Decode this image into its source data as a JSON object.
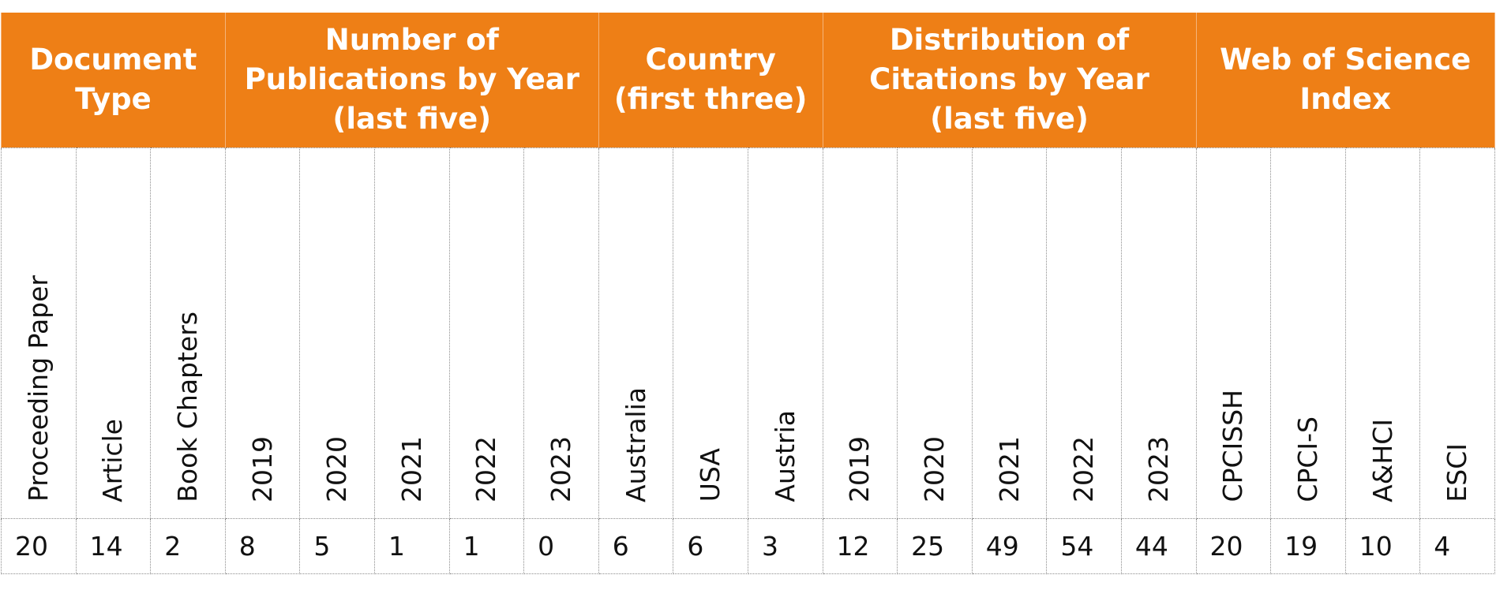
{
  "groups": [
    {
      "label": "Document Type",
      "span": 3,
      "columns": [
        {
          "label": "Proceeding Paper",
          "value": "20"
        },
        {
          "label": "Article",
          "value": "14"
        },
        {
          "label": "Book Chapters",
          "value": "2"
        }
      ]
    },
    {
      "label": "Number of Publications by Year (last five)",
      "span": 5,
      "columns": [
        {
          "label": "2019",
          "value": "8"
        },
        {
          "label": "2020",
          "value": "5"
        },
        {
          "label": "2021",
          "value": "1"
        },
        {
          "label": "2022",
          "value": "1"
        },
        {
          "label": "2023",
          "value": "0"
        }
      ]
    },
    {
      "label": "Country (first three)",
      "span": 3,
      "columns": [
        {
          "label": "Australia",
          "value": "6"
        },
        {
          "label": "USA",
          "value": "6"
        },
        {
          "label": "Austria",
          "value": "3"
        }
      ]
    },
    {
      "label": "Distribution of Citations by Year (last five)",
      "span": 5,
      "columns": [
        {
          "label": "2019",
          "value": "12"
        },
        {
          "label": "2020",
          "value": "25"
        },
        {
          "label": "2021",
          "value": "49"
        },
        {
          "label": "2022",
          "value": "54"
        },
        {
          "label": "2023",
          "value": "44"
        }
      ]
    },
    {
      "label": "Web of Science Index",
      "span": 4,
      "columns": [
        {
          "label": "CPCISSH",
          "value": "20"
        },
        {
          "label": "CPCI-S",
          "value": "19"
        },
        {
          "label": "A&HCI",
          "value": "10"
        },
        {
          "label": "ESCI",
          "value": "4"
        }
      ]
    }
  ],
  "colors": {
    "header_background": "#ee7f16",
    "header_text": "#ffffff",
    "body_text": "#111111",
    "grid_line": "#8c8c8c"
  }
}
